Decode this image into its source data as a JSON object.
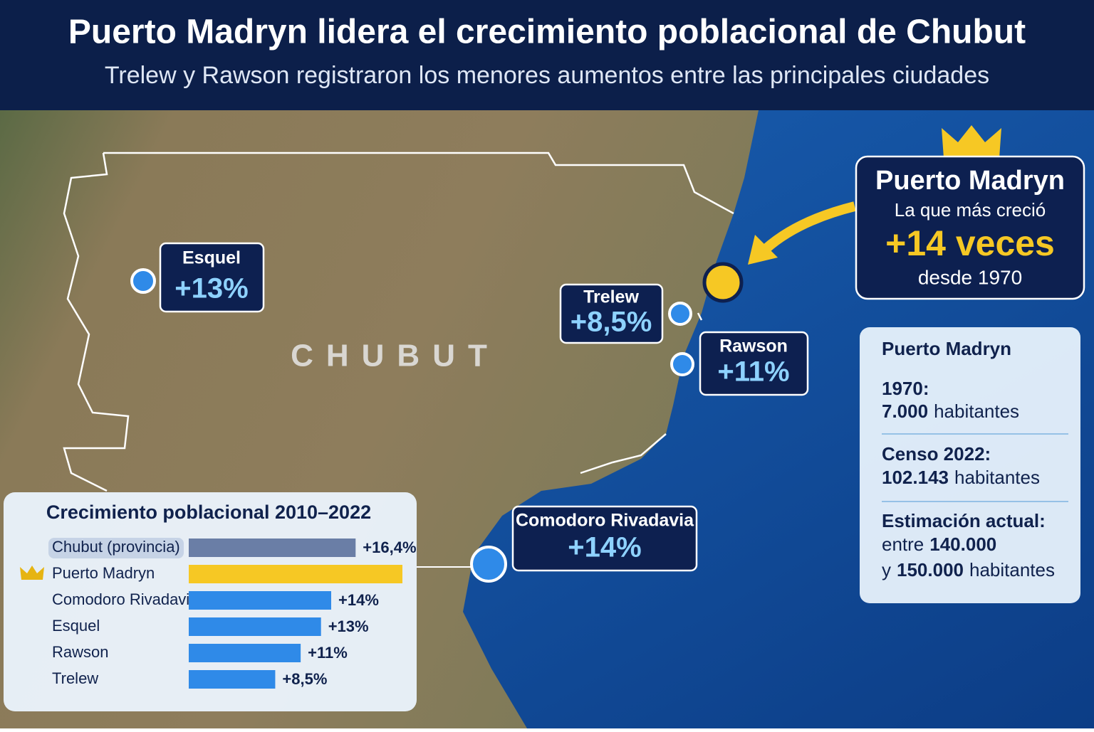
{
  "header": {
    "title": "Puerto Madryn lidera el crecimiento poblacional de Chubut",
    "subtitle": "Trelew y Rawson registraron los menores aumentos entre las principales ciudades"
  },
  "map": {
    "region_label": "CHUBUT",
    "cities": [
      {
        "name": "Esquel",
        "change": "+13%"
      },
      {
        "name": "Trelew",
        "change": "+8,5%"
      },
      {
        "name": "Rawson",
        "change": "+11%"
      },
      {
        "name": "Comodoro Rivadavia",
        "change": "+14%"
      }
    ]
  },
  "highlight": {
    "city": "Puerto Madryn",
    "caption": "La que más creció",
    "growth": "+14 veces",
    "since": "desde 1970"
  },
  "info_box": {
    "title": "Puerto Madryn",
    "rows": [
      {
        "label": "1970:",
        "value": "7.000",
        "unit": "habitantes"
      },
      {
        "label": "Censo 2022:",
        "value": "102.143",
        "unit": "habitantes"
      },
      {
        "label": "Estimación actual:",
        "lines": [
          {
            "prefix": "entre",
            "value": "140.000"
          },
          {
            "prefix": "y",
            "value": "150.000",
            "unit": "habitantes"
          }
        ]
      }
    ]
  },
  "chart_data": {
    "type": "bar",
    "orientation": "horizontal",
    "title": "Crecimiento poblacional 2010–2022",
    "categories": [
      "Chubut (provincia)",
      "Puerto Madryn",
      "Comodoro Rivadavia",
      "Esquel",
      "Rawson",
      "Trelew"
    ],
    "values": [
      16.4,
      21,
      14,
      13,
      11,
      8.5
    ],
    "value_labels": [
      "+16,4%",
      null,
      "+14%",
      "+13%",
      "+11%",
      "+8,5%"
    ],
    "colors": [
      "#6a7ea6",
      "#f6c824",
      "#2f8ae8",
      "#2f8ae8",
      "#2f8ae8",
      "#2f8ae8"
    ]
  }
}
